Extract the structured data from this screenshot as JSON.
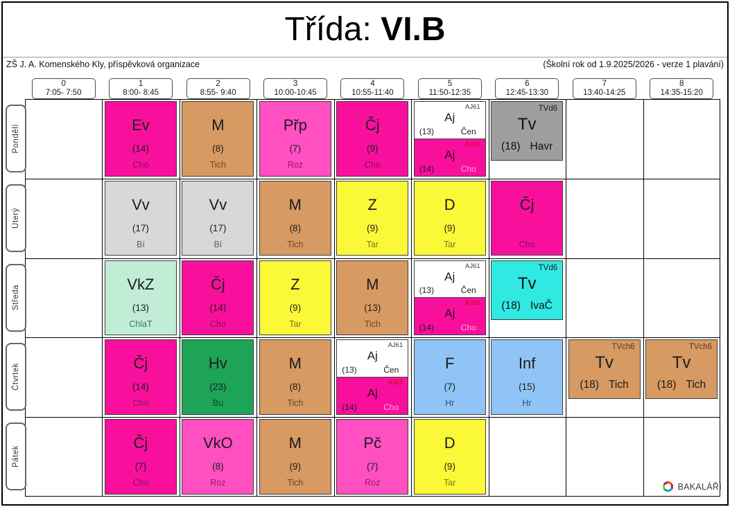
{
  "title": {
    "prefix": "Třída: ",
    "class_name": "VI.B"
  },
  "subtitle_left": "ZŠ J. A. Komenského Kly, příspěvková organizace",
  "subtitle_right": "(Školní rok od 1.9.2025/2026 - verze 1 plavání)",
  "days": [
    "Pondělí",
    "Úterý",
    "Středa",
    "Čtvrtek",
    "Pátek"
  ],
  "periods": [
    {
      "num": "0",
      "time": "7:05- 7:50"
    },
    {
      "num": "1",
      "time": "8:00- 8:45"
    },
    {
      "num": "2",
      "time": "8:55- 9:40"
    },
    {
      "num": "3",
      "time": "10:00-10:45"
    },
    {
      "num": "4",
      "time": "10:55-11:40"
    },
    {
      "num": "5",
      "time": "11:50-12:35"
    },
    {
      "num": "6",
      "time": "12:45-13:30"
    },
    {
      "num": "7",
      "time": "13:40-14:25"
    },
    {
      "num": "8",
      "time": "14:35-15:20"
    }
  ],
  "colors": {
    "magenta": {
      "bg": "#F8109C",
      "fg": "#1c1c1c",
      "teacher": "#8C0D57"
    },
    "pink": {
      "bg": "#FF4FC1",
      "fg": "#1c1c1c",
      "teacher": "#9A1562"
    },
    "tan": {
      "bg": "#D69A62",
      "fg": "#1c1c1c",
      "teacher": "#6E4620",
      "group": "#5B3A18"
    },
    "yellow": {
      "bg": "#FBF838",
      "fg": "#1c1c1c",
      "teacher": "#77771B"
    },
    "grayc": {
      "bg": "#D8D8D8",
      "fg": "#1c1c1c",
      "teacher": "#5E5E5E"
    },
    "mint": {
      "bg": "#C1EDD7",
      "fg": "#1c1c1c",
      "teacher": "#347E58"
    },
    "green": {
      "bg": "#1EA457",
      "fg": "#1c1c1c",
      "teacher": "#0C4D28"
    },
    "blue": {
      "bg": "#90C4F6",
      "fg": "#1c1c1c",
      "teacher": "#2B507E"
    },
    "darkgray": {
      "bg": "#9E9E9E",
      "fg": "#111111",
      "teacher": "#111111",
      "group": "#1c1c1c"
    },
    "cyan": {
      "bg": "#30E9E2",
      "fg": "#111111",
      "teacher": "#111111",
      "group": "#1c1c1c"
    },
    "ajtop": {
      "bg": "#FFFFFF",
      "fg": "#1c1c1c",
      "teacher": "#1c1c1c",
      "group": "#3c3c3c"
    },
    "ajbottom": {
      "bg": "#F8109C",
      "fg": "#30081F",
      "teacher": "#FFA9D8",
      "group": "#C40A0A"
    }
  },
  "cells": [
    {
      "day": 0,
      "period": 1,
      "type": "single",
      "subject": "Ev",
      "room": "(14)",
      "teacher": "Cho",
      "color": "magenta"
    },
    {
      "day": 0,
      "period": 2,
      "type": "single",
      "subject": "M",
      "room": "(8)",
      "teacher": "Tich",
      "color": "tan"
    },
    {
      "day": 0,
      "period": 3,
      "type": "single",
      "subject": "Přp",
      "room": "(7)",
      "teacher": "Roz",
      "color": "pink"
    },
    {
      "day": 0,
      "period": 4,
      "type": "single",
      "subject": "Čj",
      "room": "(9)",
      "teacher": "Cho",
      "color": "magenta"
    },
    {
      "day": 0,
      "period": 5,
      "type": "split",
      "top": {
        "group": "AJ61",
        "subject": "Aj",
        "room": "(13)",
        "teacher": "Čen",
        "color": "ajtop"
      },
      "bottom": {
        "group": "AJ62",
        "subject": "Aj",
        "room": "(14)",
        "teacher": "Cho",
        "color": "ajbottom"
      }
    },
    {
      "day": 0,
      "period": 6,
      "type": "tv",
      "group": "TVd6",
      "subject": "Tv",
      "room": "(18)",
      "teacher": "Havr",
      "color": "darkgray"
    },
    {
      "day": 1,
      "period": 1,
      "type": "single",
      "subject": "Vv",
      "room": "(17)",
      "teacher": "Bí",
      "color": "grayc"
    },
    {
      "day": 1,
      "period": 2,
      "type": "single",
      "subject": "Vv",
      "room": "(17)",
      "teacher": "Bí",
      "color": "grayc"
    },
    {
      "day": 1,
      "period": 3,
      "type": "single",
      "subject": "M",
      "room": "(8)",
      "teacher": "Tich",
      "color": "tan"
    },
    {
      "day": 1,
      "period": 4,
      "type": "single",
      "subject": "Z",
      "room": "(9)",
      "teacher": "Tar",
      "color": "yellow"
    },
    {
      "day": 1,
      "period": 5,
      "type": "single",
      "subject": "D",
      "room": "(9)",
      "teacher": "Tar",
      "color": "yellow"
    },
    {
      "day": 1,
      "period": 6,
      "type": "single",
      "subject": "Čj",
      "room": "",
      "teacher": "Cho",
      "color": "magenta"
    },
    {
      "day": 2,
      "period": 1,
      "type": "single",
      "subject": "VkZ",
      "room": "(13)",
      "teacher": "ChlaT",
      "color": "mint"
    },
    {
      "day": 2,
      "period": 2,
      "type": "single",
      "subject": "Čj",
      "room": "(14)",
      "teacher": "Cho",
      "color": "magenta"
    },
    {
      "day": 2,
      "period": 3,
      "type": "single",
      "subject": "Z",
      "room": "(9)",
      "teacher": "Tar",
      "color": "yellow"
    },
    {
      "day": 2,
      "period": 4,
      "type": "single",
      "subject": "M",
      "room": "(13)",
      "teacher": "Tich",
      "color": "tan"
    },
    {
      "day": 2,
      "period": 5,
      "type": "split",
      "top": {
        "group": "AJ61",
        "subject": "Aj",
        "room": "(13)",
        "teacher": "Čen",
        "color": "ajtop"
      },
      "bottom": {
        "group": "AJ62",
        "subject": "Aj",
        "room": "(14)",
        "teacher": "Cho",
        "color": "ajbottom"
      }
    },
    {
      "day": 2,
      "period": 6,
      "type": "tv",
      "group": "TVd6",
      "subject": "Tv",
      "room": "(18)",
      "teacher": "IvaČ",
      "color": "cyan"
    },
    {
      "day": 3,
      "period": 1,
      "type": "single",
      "subject": "Čj",
      "room": "(14)",
      "teacher": "Cho",
      "color": "magenta"
    },
    {
      "day": 3,
      "period": 2,
      "type": "single",
      "subject": "Hv",
      "room": "(23)",
      "teacher": "Bu",
      "color": "green"
    },
    {
      "day": 3,
      "period": 3,
      "type": "single",
      "subject": "M",
      "room": "(8)",
      "teacher": "Tich",
      "color": "tan"
    },
    {
      "day": 3,
      "period": 4,
      "type": "split",
      "top": {
        "group": "AJ61",
        "subject": "Aj",
        "room": "(13)",
        "teacher": "Čen",
        "color": "ajtop"
      },
      "bottom": {
        "group": "AJ62",
        "subject": "Aj",
        "room": "(14)",
        "teacher": "Cho",
        "color": "ajbottom"
      }
    },
    {
      "day": 3,
      "period": 5,
      "type": "single",
      "subject": "F",
      "room": "(7)",
      "teacher": "Hr",
      "color": "blue"
    },
    {
      "day": 3,
      "period": 6,
      "type": "single",
      "subject": "Inf",
      "room": "(15)",
      "teacher": "Hr",
      "color": "blue"
    },
    {
      "day": 3,
      "period": 7,
      "type": "tv",
      "group": "TVch6",
      "subject": "Tv",
      "room": "(18)",
      "teacher": "Tich",
      "color": "tan"
    },
    {
      "day": 3,
      "period": 8,
      "type": "tv",
      "group": "TVch6",
      "subject": "Tv",
      "room": "(18)",
      "teacher": "Tich",
      "color": "tan"
    },
    {
      "day": 4,
      "period": 1,
      "type": "single",
      "subject": "Čj",
      "room": "(7)",
      "teacher": "Cho",
      "color": "magenta"
    },
    {
      "day": 4,
      "period": 2,
      "type": "single",
      "subject": "VkO",
      "room": "(8)",
      "teacher": "Roz",
      "color": "pink"
    },
    {
      "day": 4,
      "period": 3,
      "type": "single",
      "subject": "M",
      "room": "(9)",
      "teacher": "Tich",
      "color": "tan"
    },
    {
      "day": 4,
      "period": 4,
      "type": "single",
      "subject": "Pč",
      "room": "(7)",
      "teacher": "Roz",
      "color": "pink"
    },
    {
      "day": 4,
      "period": 5,
      "type": "single",
      "subject": "D",
      "room": "(9)",
      "teacher": "Tar",
      "color": "yellow"
    }
  ],
  "logo": {
    "text": "BAKALÁŘI",
    "icon": "hexagon-ring-icon",
    "icon_colors": [
      "#E8520E",
      "#C2151B",
      "#0AA0D6",
      "#0CA878",
      "#8DC21F",
      "#B5007C"
    ]
  }
}
